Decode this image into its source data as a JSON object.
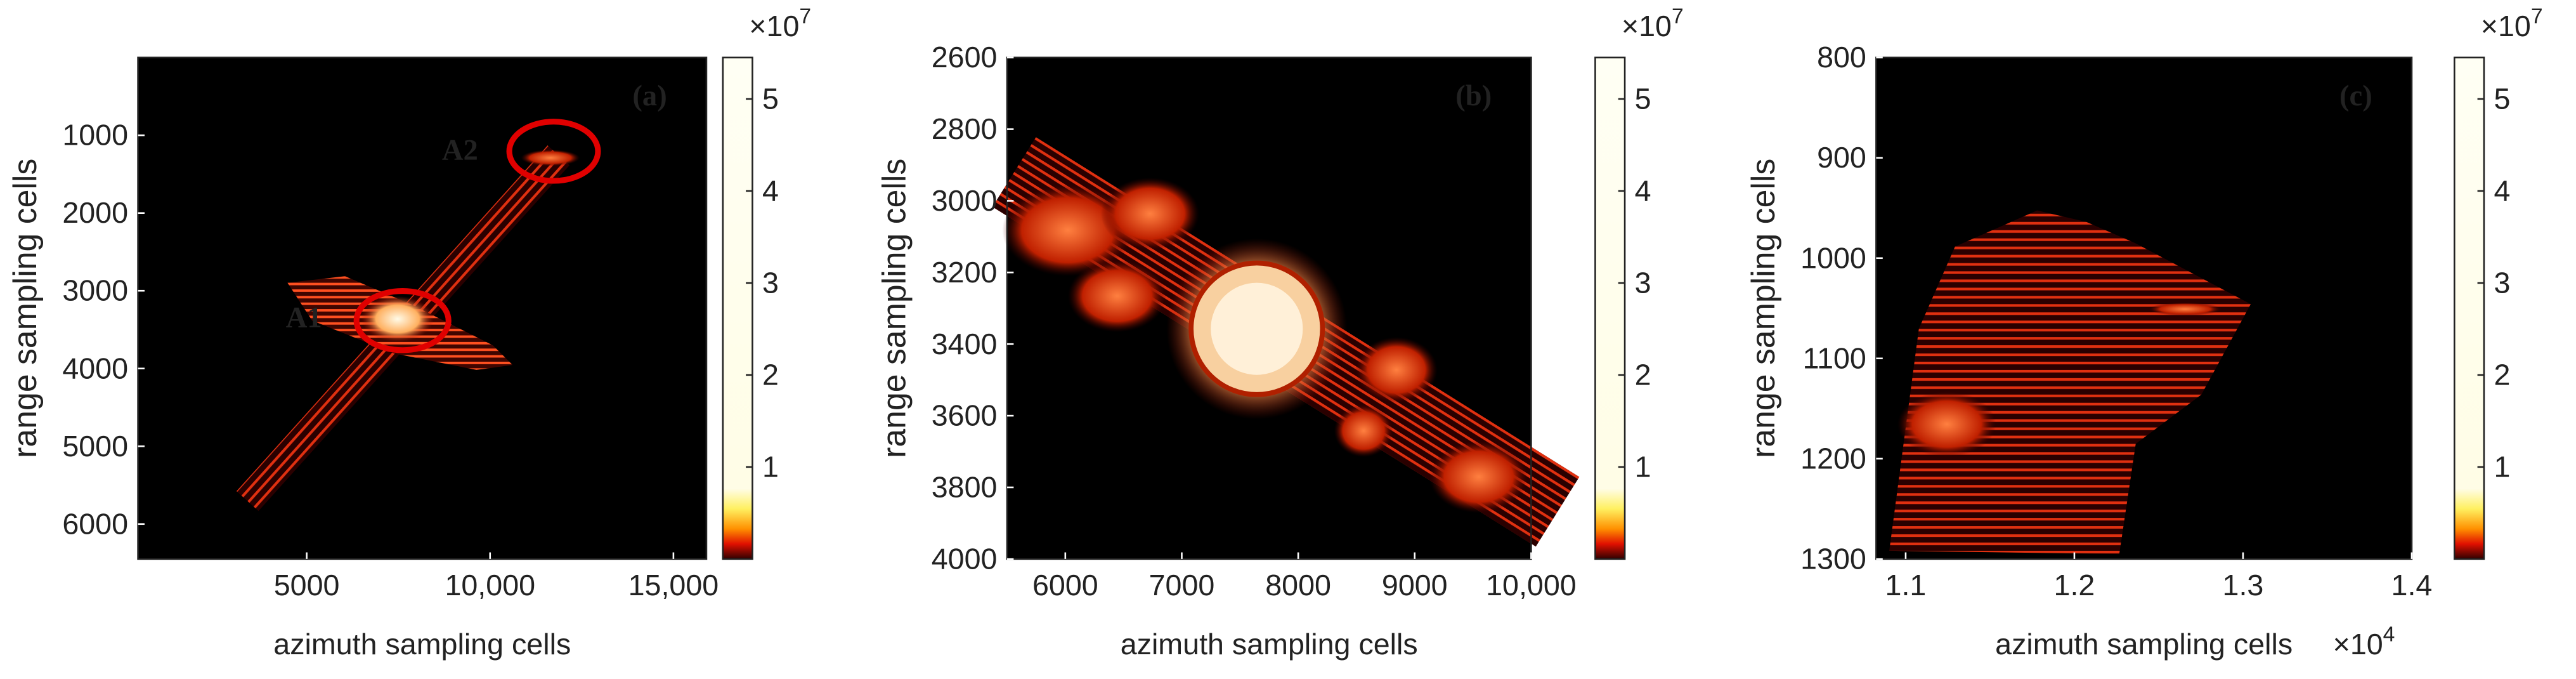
{
  "chart_data": [
    {
      "type": "image",
      "title": "(a)",
      "xlabel": "azimuth sampling cells",
      "ylabel": "range sampling cells",
      "xlim": [
        400,
        15900
      ],
      "xticks": [
        5000,
        {
          "value": 10000,
          "label": "10,000"
        },
        {
          "value": 15000,
          "label": "15,000"
        }
      ],
      "ylim": [
        0,
        6450
      ],
      "y_reversed": true,
      "yticks": [
        1000,
        2000,
        3000,
        4000,
        5000,
        6000
      ],
      "colorbar": {
        "clim": [
          0,
          5.45
        ],
        "ticks": [
          1,
          2,
          3,
          4,
          5
        ],
        "exponent": {
          "base": "×10",
          "power": "7"
        }
      },
      "annotations": [
        {
          "text": "A1"
        },
        {
          "text": "A2"
        }
      ]
    },
    {
      "type": "image",
      "title": "(b)",
      "xlabel": "azimuth sampling cells",
      "ylabel": "range sampling cells",
      "xlim": [
        5500,
        10000
      ],
      "xticks": [
        6000,
        7000,
        8000,
        9000,
        {
          "value": 10000,
          "label": "10,000"
        }
      ],
      "ylim": [
        2600,
        4000
      ],
      "y_reversed": true,
      "yticks": [
        2600,
        2800,
        3000,
        3200,
        3400,
        3600,
        3800,
        4000
      ],
      "colorbar": {
        "clim": [
          0,
          5.45
        ],
        "ticks": [
          1,
          2,
          3,
          4,
          5
        ],
        "exponent": {
          "base": "×10",
          "power": "7"
        }
      }
    },
    {
      "type": "image",
      "title": "(c)",
      "xlabel": "azimuth sampling cells",
      "ylabel": "range sampling cells",
      "xlim": [
        1.0825,
        1.4
      ],
      "xticks": [
        1.1,
        1.2,
        1.3,
        1.4
      ],
      "x_exponent": {
        "base": "×10",
        "power": "4"
      },
      "ylim": [
        800,
        1300
      ],
      "y_reversed": true,
      "yticks": [
        800,
        900,
        1000,
        1100,
        1200,
        1300
      ],
      "colorbar": {
        "clim": [
          0,
          5.45
        ],
        "ticks": [
          1,
          2,
          3,
          4,
          5
        ],
        "exponent": {
          "base": "×10",
          "power": "7"
        }
      }
    }
  ]
}
